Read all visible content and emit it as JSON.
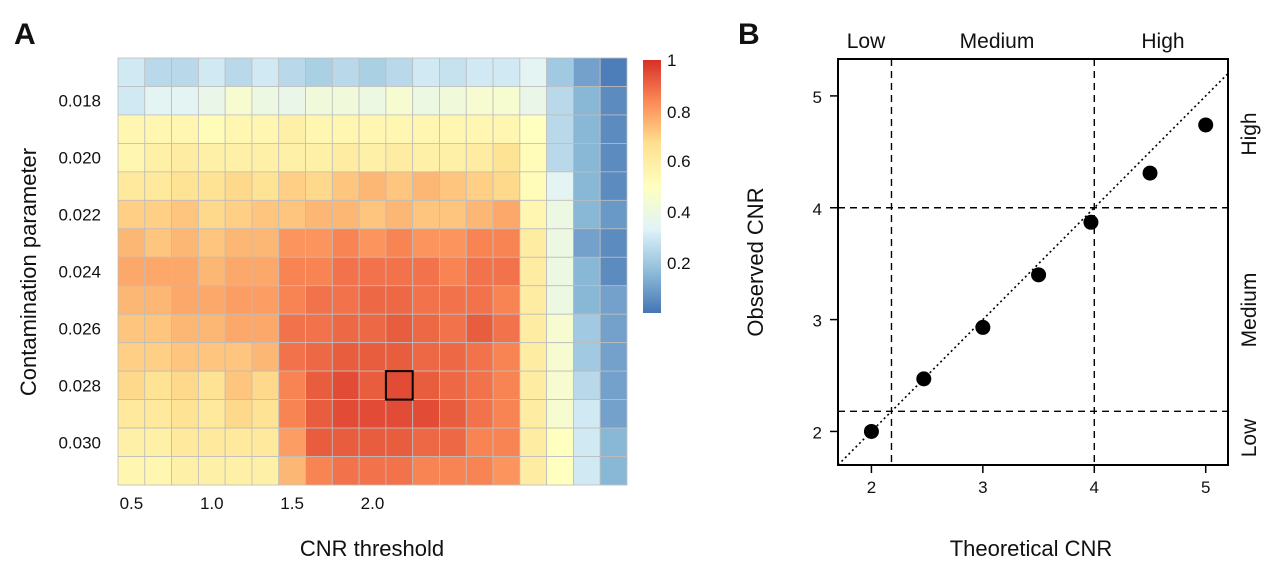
{
  "chart_data": [
    {
      "panel": "A",
      "type": "heatmap",
      "xlabel": "CNR threshold",
      "ylabel": "Contamination parameter",
      "x_ticks": [
        "0.5",
        "1.0",
        "1.5",
        "2.0"
      ],
      "y_ticks": [
        "0.018",
        "0.020",
        "0.022",
        "0.024",
        "0.026",
        "0.028",
        "0.030"
      ],
      "colorbar": {
        "ticks": [
          "1",
          "0.8",
          "0.6",
          "0.4",
          "0.2"
        ],
        "range": [
          0,
          1
        ],
        "colors": [
          "#4575b4",
          "#91bfdb",
          "#e0f3f8",
          "#ffffbf",
          "#fee090",
          "#fc8d59",
          "#d73027"
        ]
      },
      "highlight_cell": {
        "row": 11,
        "col": 10
      },
      "values": [
        [
          0.3,
          0.25,
          0.25,
          0.3,
          0.25,
          0.3,
          0.25,
          0.22,
          0.25,
          0.22,
          0.25,
          0.3,
          0.28,
          0.3,
          0.3,
          0.35,
          0.2,
          0.1,
          0.02
        ],
        [
          0.3,
          0.35,
          0.35,
          0.38,
          0.45,
          0.4,
          0.38,
          0.42,
          0.42,
          0.4,
          0.45,
          0.4,
          0.42,
          0.45,
          0.45,
          0.38,
          0.25,
          0.15,
          0.05
        ],
        [
          0.55,
          0.55,
          0.55,
          0.52,
          0.55,
          0.55,
          0.58,
          0.55,
          0.55,
          0.55,
          0.55,
          0.55,
          0.55,
          0.55,
          0.55,
          0.5,
          0.25,
          0.15,
          0.05
        ],
        [
          0.55,
          0.58,
          0.6,
          0.58,
          0.58,
          0.58,
          0.58,
          0.58,
          0.6,
          0.58,
          0.6,
          0.58,
          0.58,
          0.6,
          0.65,
          0.52,
          0.25,
          0.15,
          0.05
        ],
        [
          0.62,
          0.62,
          0.65,
          0.65,
          0.68,
          0.65,
          0.7,
          0.68,
          0.72,
          0.75,
          0.72,
          0.75,
          0.72,
          0.7,
          0.68,
          0.52,
          0.35,
          0.15,
          0.05
        ],
        [
          0.7,
          0.7,
          0.72,
          0.68,
          0.7,
          0.72,
          0.72,
          0.75,
          0.75,
          0.72,
          0.75,
          0.72,
          0.72,
          0.75,
          0.78,
          0.55,
          0.4,
          0.15,
          0.08
        ],
        [
          0.75,
          0.72,
          0.75,
          0.72,
          0.75,
          0.75,
          0.82,
          0.82,
          0.85,
          0.82,
          0.85,
          0.82,
          0.82,
          0.85,
          0.85,
          0.6,
          0.4,
          0.1,
          0.05
        ],
        [
          0.78,
          0.78,
          0.78,
          0.75,
          0.78,
          0.78,
          0.85,
          0.85,
          0.88,
          0.88,
          0.88,
          0.88,
          0.85,
          0.88,
          0.88,
          0.6,
          0.4,
          0.15,
          0.05
        ],
        [
          0.75,
          0.75,
          0.78,
          0.78,
          0.8,
          0.8,
          0.85,
          0.88,
          0.88,
          0.9,
          0.9,
          0.88,
          0.88,
          0.88,
          0.85,
          0.6,
          0.4,
          0.15,
          0.1
        ],
        [
          0.72,
          0.72,
          0.75,
          0.75,
          0.78,
          0.78,
          0.88,
          0.88,
          0.9,
          0.9,
          0.92,
          0.9,
          0.88,
          0.92,
          0.88,
          0.6,
          0.45,
          0.2,
          0.1
        ],
        [
          0.7,
          0.7,
          0.72,
          0.72,
          0.72,
          0.75,
          0.88,
          0.9,
          0.92,
          0.92,
          0.92,
          0.9,
          0.9,
          0.88,
          0.85,
          0.6,
          0.45,
          0.2,
          0.1
        ],
        [
          0.68,
          0.65,
          0.68,
          0.65,
          0.72,
          0.68,
          0.85,
          0.92,
          0.95,
          0.92,
          0.95,
          0.92,
          0.9,
          0.88,
          0.85,
          0.6,
          0.45,
          0.25,
          0.1
        ],
        [
          0.62,
          0.62,
          0.65,
          0.62,
          0.68,
          0.65,
          0.85,
          0.92,
          0.95,
          0.95,
          0.95,
          0.95,
          0.92,
          0.88,
          0.85,
          0.6,
          0.45,
          0.3,
          0.1
        ],
        [
          0.58,
          0.58,
          0.62,
          0.62,
          0.62,
          0.62,
          0.8,
          0.92,
          0.92,
          0.92,
          0.92,
          0.9,
          0.9,
          0.85,
          0.85,
          0.6,
          0.5,
          0.3,
          0.15
        ],
        [
          0.55,
          0.55,
          0.58,
          0.58,
          0.58,
          0.58,
          0.75,
          0.85,
          0.88,
          0.88,
          0.88,
          0.85,
          0.85,
          0.85,
          0.82,
          0.6,
          0.5,
          0.3,
          0.15
        ]
      ]
    },
    {
      "panel": "B",
      "type": "scatter",
      "xlabel": "Theoretical CNR",
      "ylabel": "Observed CNR",
      "x_ticks": [
        2,
        3,
        4,
        5
      ],
      "y_ticks": [
        2,
        3,
        4,
        5
      ],
      "xlim": [
        1.7,
        5.2
      ],
      "ylim": [
        1.7,
        5.33
      ],
      "points": [
        {
          "x": 2.0,
          "y": 2.0
        },
        {
          "x": 2.47,
          "y": 2.47
        },
        {
          "x": 3.0,
          "y": 2.93
        },
        {
          "x": 3.5,
          "y": 3.4
        },
        {
          "x": 3.97,
          "y": 3.87
        },
        {
          "x": 4.5,
          "y": 4.31
        },
        {
          "x": 5.0,
          "y": 4.74
        }
      ],
      "identity_line": true,
      "thresholds": [
        2.18,
        4.0
      ],
      "regions_top": [
        "Low",
        "Medium",
        "High"
      ],
      "regions_right": [
        "High",
        "Medium",
        "Low"
      ]
    }
  ],
  "labels": {
    "panel_a": "A",
    "panel_b": "B",
    "a_xlabel": "CNR threshold",
    "a_ylabel": "Contamination parameter",
    "b_xlabel": "Theoretical CNR",
    "b_ylabel": "Observed CNR",
    "cb_1": "1",
    "cb_08": "0.8",
    "cb_06": "0.6",
    "cb_04": "0.4",
    "cb_02": "0.2",
    "top_low": "Low",
    "top_medium": "Medium",
    "top_high": "High",
    "right_high": "High",
    "right_medium": "Medium",
    "right_low": "Low"
  }
}
